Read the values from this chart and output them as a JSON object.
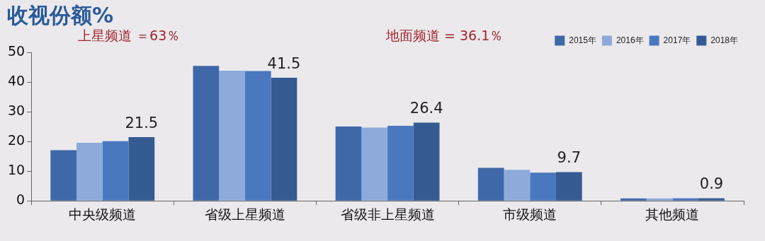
{
  "chart_data": {
    "type": "bar",
    "title": "收视份额%",
    "categories": [
      "中央级频道",
      "省级上星频道",
      "省级非上星频道",
      "市级频道",
      "其他频道"
    ],
    "series": [
      {
        "name": "2015年",
        "color": "#3f68a8",
        "values": [
          17.1,
          45.5,
          25.1,
          11.1,
          0.8
        ]
      },
      {
        "name": "2016年",
        "color": "#8eaadb",
        "values": [
          19.6,
          43.9,
          24.7,
          10.5,
          0.8
        ]
      },
      {
        "name": "2017年",
        "color": "#4a78be",
        "values": [
          20.1,
          43.8,
          25.3,
          9.5,
          0.9
        ]
      },
      {
        "name": "2018年",
        "color": "#345c92",
        "values": [
          21.5,
          41.5,
          26.4,
          9.7,
          0.9
        ],
        "value_labels": [
          "21.5",
          "41.5",
          "26.4",
          "9.7",
          "0.9"
        ]
      }
    ],
    "annotations": [
      "上星频道 ＝63％",
      "地面频道 = 36.1％"
    ],
    "ylim": [
      0,
      50
    ],
    "yticks": [
      0,
      10,
      20,
      30,
      40,
      50
    ],
    "grid": false,
    "legend": "top right"
  }
}
